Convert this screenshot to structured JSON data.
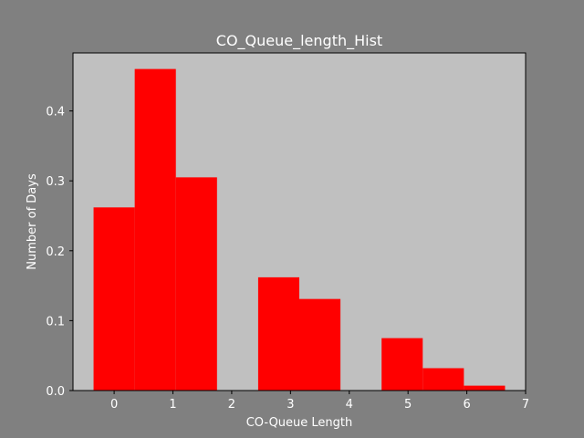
{
  "chart_data": {
    "type": "bar",
    "title": "CO_Queue_length_Hist",
    "xlabel": "CO-Queue Length",
    "ylabel": "Number of Days",
    "xlim": [
      -0.7,
      7.0
    ],
    "ylim": [
      0.0,
      0.483
    ],
    "xticks": [
      0,
      1,
      2,
      3,
      4,
      5,
      6,
      7
    ],
    "xtick_labels": [
      "0",
      "1",
      "2",
      "3",
      "4",
      "5",
      "6",
      "7"
    ],
    "yticks": [
      0.0,
      0.1,
      0.2,
      0.3,
      0.4
    ],
    "ytick_labels": [
      "0.0",
      "0.1",
      "0.2",
      "0.3",
      "0.4"
    ],
    "bars": [
      {
        "x0": -0.35,
        "x1": 0.35,
        "value": 0.262
      },
      {
        "x0": 0.35,
        "x1": 1.05,
        "value": 0.46
      },
      {
        "x0": 1.05,
        "x1": 1.75,
        "value": 0.305
      },
      {
        "x0": 2.45,
        "x1": 3.15,
        "value": 0.162
      },
      {
        "x0": 3.15,
        "x1": 3.85,
        "value": 0.131
      },
      {
        "x0": 4.55,
        "x1": 5.25,
        "value": 0.075
      },
      {
        "x0": 5.25,
        "x1": 5.95,
        "value": 0.032
      },
      {
        "x0": 5.95,
        "x1": 6.65,
        "value": 0.007
      }
    ],
    "grid": false,
    "colors": {
      "figure_background": "#808080",
      "axes_background": "#c0c0c0",
      "bar": "#ff0000",
      "text": "#ffffff"
    }
  }
}
